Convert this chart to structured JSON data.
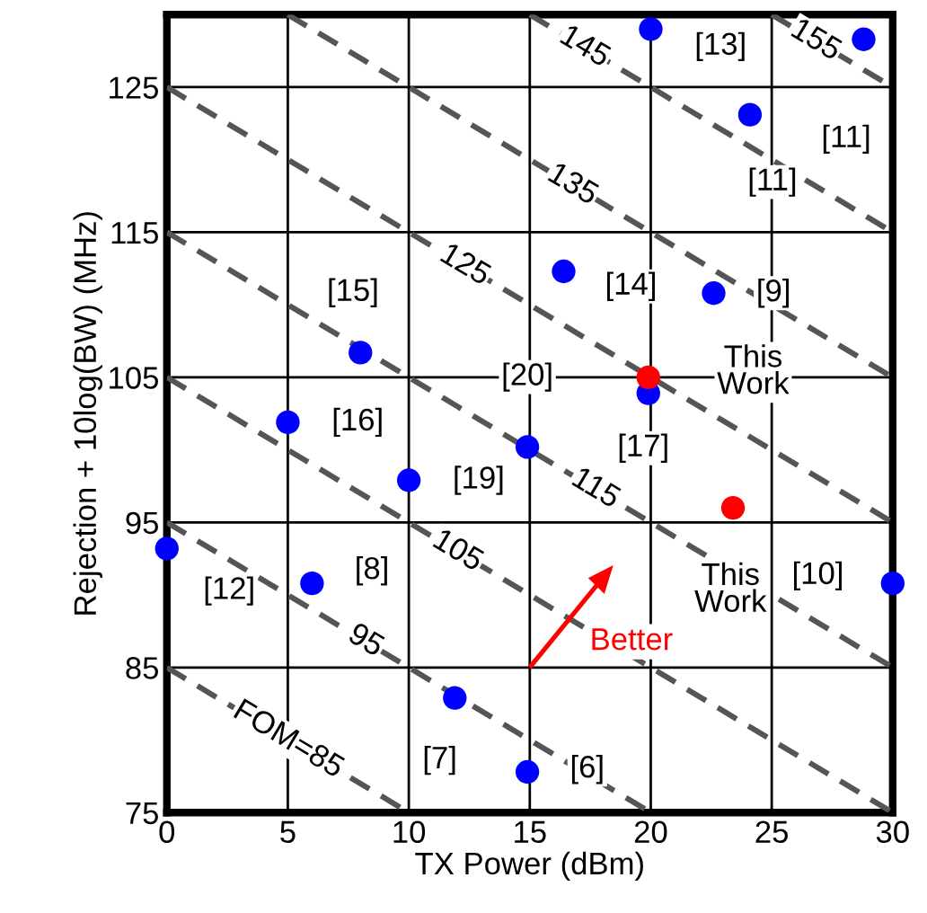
{
  "chart_data": {
    "type": "scatter",
    "xlabel": "TX Power (dBm)",
    "ylabel": "Rejection + 10log(BW) (MHz)",
    "xlim": [
      0,
      30
    ],
    "ylim": [
      75,
      130
    ],
    "xticks": [
      0,
      5,
      10,
      15,
      20,
      25,
      30
    ],
    "yticks": [
      75,
      85,
      95,
      105,
      115,
      125
    ],
    "grid": true,
    "legend": false,
    "series": [
      {
        "marker": "circle",
        "color": "#0000ff",
        "x": [
          20,
          28.8,
          24.1,
          16.4,
          22.6,
          8.0,
          19.9,
          5.0,
          14.9,
          10.0,
          0,
          6.0,
          30,
          11.9,
          14.9
        ],
        "values": [
          129.0,
          128.3,
          123.1,
          112.3,
          110.8,
          106.7,
          103.9,
          101.9,
          100.2,
          97.9,
          93.2,
          90.8,
          90.8,
          82.9,
          77.8
        ]
      },
      {
        "marker": "circle",
        "color": "#ff0000",
        "x": [
          19.9,
          23.4
        ],
        "values": [
          105.0,
          96.0
        ]
      },
      {
        "type": "line",
        "name": "FOM=85",
        "color": "#555555",
        "line_style": "dashed",
        "x": [
          0,
          10
        ],
        "values": [
          85,
          75
        ]
      },
      {
        "type": "line",
        "name": "95",
        "color": "#555555",
        "line_style": "dashed",
        "x": [
          0,
          20
        ],
        "values": [
          95,
          75
        ]
      },
      {
        "type": "line",
        "name": "105",
        "color": "#555555",
        "line_style": "dashed",
        "x": [
          0,
          30
        ],
        "values": [
          105,
          75
        ]
      },
      {
        "type": "line",
        "name": "115",
        "color": "#555555",
        "line_style": "dashed",
        "x": [
          0,
          30
        ],
        "values": [
          115,
          85
        ]
      },
      {
        "type": "line",
        "name": "125",
        "color": "#555555",
        "line_style": "dashed",
        "x": [
          0,
          30
        ],
        "values": [
          125,
          95
        ]
      },
      {
        "type": "line",
        "name": "135",
        "color": "#555555",
        "line_style": "dashed",
        "x": [
          5,
          30
        ],
        "values": [
          130,
          105
        ]
      },
      {
        "type": "line",
        "name": "145",
        "color": "#555555",
        "line_style": "dashed",
        "x": [
          15,
          30
        ],
        "values": [
          130,
          115
        ]
      },
      {
        "type": "line",
        "name": "155",
        "color": "#555555",
        "line_style": "dashed",
        "x": [
          25,
          30
        ],
        "values": [
          130,
          125
        ]
      }
    ],
    "annotations": [
      {
        "text": "[13]",
        "x": 20,
        "y": 129.0
      },
      {
        "text": "[11]",
        "x": 28.8,
        "y": 128.3
      },
      {
        "text": "[11]",
        "x": 24.1,
        "y": 123.1
      },
      {
        "text": "[14]",
        "x": 16.4,
        "y": 112.3
      },
      {
        "text": "[9]",
        "x": 22.6,
        "y": 110.8
      },
      {
        "text": "[15]",
        "x": 8.0,
        "y": 106.7
      },
      {
        "text": "[17]",
        "x": 19.9,
        "y": 103.9
      },
      {
        "text": "[16]",
        "x": 5.0,
        "y": 101.9
      },
      {
        "text": "[20]",
        "x": 14.9,
        "y": 100.2
      },
      {
        "text": "[19]",
        "x": 10.0,
        "y": 97.9
      },
      {
        "text": "[12]",
        "x": 0,
        "y": 93.2
      },
      {
        "text": "[8]",
        "x": 6.0,
        "y": 90.8
      },
      {
        "text": "[10]",
        "x": 30,
        "y": 90.8
      },
      {
        "text": "[7]",
        "x": 11.9,
        "y": 82.9
      },
      {
        "text": "[6]",
        "x": 14.9,
        "y": 77.8
      },
      {
        "text": "This\nWork",
        "x": 19.9,
        "y": 105.0
      },
      {
        "text": "This\nWork",
        "x": 23.4,
        "y": 96.0
      },
      "Better"
    ]
  }
}
